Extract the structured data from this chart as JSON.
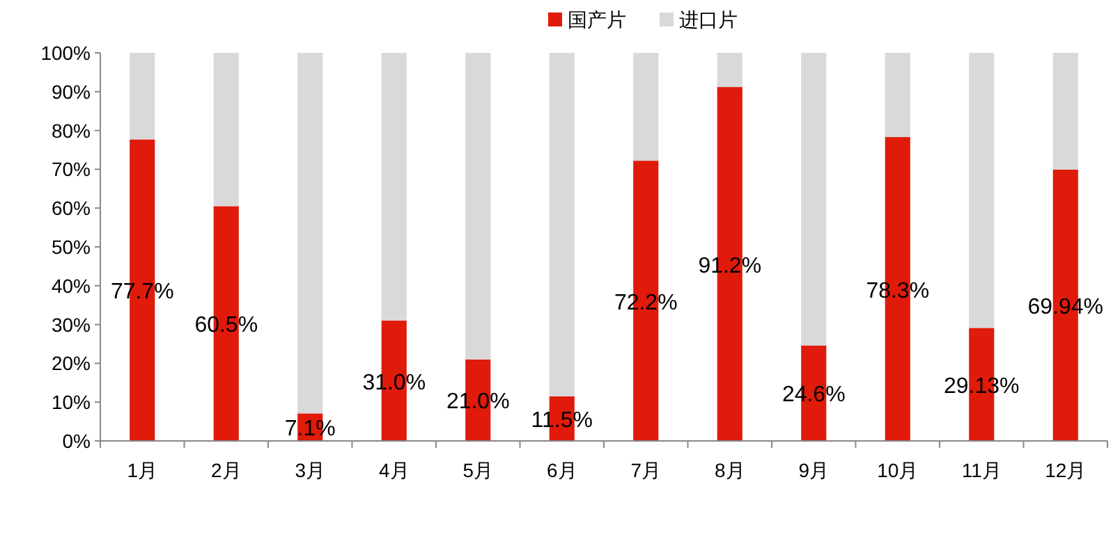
{
  "chart_data": {
    "type": "bar",
    "stacked": true,
    "categories": [
      "1月",
      "2月",
      "3月",
      "4月",
      "5月",
      "6月",
      "7月",
      "8月",
      "9月",
      "10月",
      "11月",
      "12月"
    ],
    "series": [
      {
        "name": "国产片",
        "color": "#e01b0b",
        "values": [
          77.7,
          60.5,
          7.1,
          31.0,
          21.0,
          11.5,
          72.2,
          91.2,
          24.6,
          78.3,
          29.13,
          69.94
        ],
        "value_labels": [
          "77.7%",
          "60.5%",
          "7.1%",
          "31.0%",
          "21.0%",
          "11.5%",
          "72.2%",
          "91.2%",
          "24.6%",
          "78.3%",
          "29.13%",
          "69.94%"
        ]
      },
      {
        "name": "进口片",
        "color": "#d9d9d9",
        "values": [
          22.3,
          39.5,
          92.9,
          69.0,
          79.0,
          88.5,
          27.8,
          8.8,
          75.4,
          21.7,
          70.87,
          30.06
        ]
      }
    ],
    "ylim": [
      0,
      100
    ],
    "yticks": [
      {
        "value": 0,
        "label": "0%"
      },
      {
        "value": 10,
        "label": "10%"
      },
      {
        "value": 20,
        "label": "20%"
      },
      {
        "value": 30,
        "label": "30%"
      },
      {
        "value": 40,
        "label": "40%"
      },
      {
        "value": 50,
        "label": "50%"
      },
      {
        "value": 60,
        "label": "60%"
      },
      {
        "value": 70,
        "label": "70%"
      },
      {
        "value": 80,
        "label": "80%"
      },
      {
        "value": 90,
        "label": "90%"
      },
      {
        "value": 100,
        "label": "100%"
      }
    ],
    "grid": false,
    "legend": "top"
  }
}
